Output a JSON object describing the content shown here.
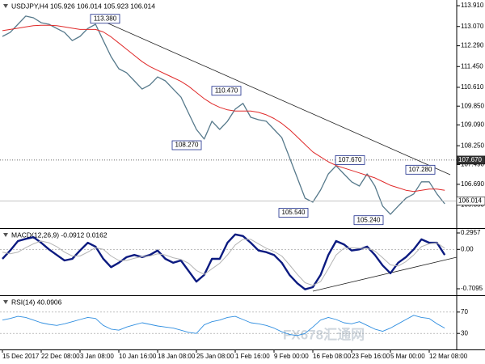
{
  "chart_data": [
    {
      "type": "line",
      "title": "USDJPY,H4  105.926 106.014 105.923 106.014",
      "ylim": [
        104.92,
        114.14
      ],
      "yticks": [
        {
          "value": 113.91,
          "label": "113.910"
        },
        {
          "value": 113.07,
          "label": "113.070"
        },
        {
          "value": 112.29,
          "label": "112.290"
        },
        {
          "value": 111.45,
          "label": "111.450"
        },
        {
          "value": 110.61,
          "label": "110.610"
        },
        {
          "value": 109.85,
          "label": "109.850"
        },
        {
          "value": 109.09,
          "label": "109.090"
        },
        {
          "value": 108.25,
          "label": "108.250"
        },
        {
          "value": 107.49,
          "label": "107.490"
        },
        {
          "value": 106.69,
          "label": "106.690"
        },
        {
          "value": 105.85,
          "label": "105.850"
        }
      ],
      "hlines": [
        {
          "value": 107.67,
          "label": "107.670"
        },
        {
          "value": 106.014,
          "label": "106.014"
        }
      ],
      "annotations": [
        {
          "value": 113.38,
          "label": "113.380"
        },
        {
          "value": 110.47,
          "label": "110.470"
        },
        {
          "value": 108.27,
          "label": "108.270"
        },
        {
          "value": 107.67,
          "label": "107.670"
        },
        {
          "value": 105.54,
          "label": "105.540"
        },
        {
          "value": 105.24,
          "label": "105.240"
        },
        {
          "value": 107.28,
          "label": "107.280"
        }
      ],
      "series": [
        {
          "name": "USDJPY",
          "color": "#56798b",
          "values": [
            112.67,
            112.83,
            113.16,
            113.49,
            113.42,
            113.22,
            113.16,
            112.99,
            112.83,
            112.5,
            112.67,
            112.99,
            113.16,
            112.5,
            111.85,
            111.36,
            111.2,
            110.87,
            110.54,
            110.71,
            111.03,
            110.87,
            110.54,
            110.22,
            109.56,
            108.91,
            108.52,
            109.24,
            108.91,
            109.24,
            109.73,
            109.96,
            109.4,
            109.3,
            109.24,
            108.91,
            108.58,
            107.77,
            106.95,
            106.13,
            105.97,
            106.46,
            107.11,
            107.44,
            107.11,
            106.79,
            106.62,
            107.11,
            106.62,
            105.81,
            105.48,
            105.81,
            106.13,
            106.3,
            106.79,
            106.79,
            106.3,
            105.9
          ]
        },
        {
          "name": "MA",
          "color": "#e02a2a",
          "values": [
            112.9,
            112.95,
            113.0,
            113.05,
            113.1,
            113.12,
            113.12,
            113.1,
            113.05,
            113.0,
            112.95,
            112.95,
            112.95,
            112.85,
            112.65,
            112.4,
            112.15,
            111.9,
            111.65,
            111.45,
            111.3,
            111.15,
            111.0,
            110.85,
            110.65,
            110.4,
            110.15,
            109.95,
            109.8,
            109.7,
            109.65,
            109.65,
            109.65,
            109.6,
            109.5,
            109.35,
            109.15,
            108.9,
            108.6,
            108.3,
            108.0,
            107.8,
            107.6,
            107.45,
            107.35,
            107.25,
            107.15,
            107.05,
            106.95,
            106.8,
            106.65,
            106.55,
            106.45,
            106.4,
            106.45,
            106.5,
            106.5,
            106.45
          ]
        }
      ]
    },
    {
      "type": "line",
      "title": "MACD(12,26,9) -0.0912 0.0162",
      "ylim": [
        -0.826,
        0.3686
      ],
      "yticks": [
        0.2957,
        {
          "value": 0,
          "label": "0.00"
        },
        -0.7095
      ],
      "series": [
        {
          "name": "MACD",
          "color": "#0b1a80",
          "values": [
            -0.17,
            -0.02,
            0.15,
            0.19,
            0.22,
            0.12,
            0.0,
            -0.1,
            -0.2,
            -0.17,
            -0.02,
            0.12,
            0.05,
            -0.17,
            -0.32,
            -0.24,
            -0.14,
            -0.1,
            -0.14,
            -0.1,
            -0.02,
            -0.17,
            -0.24,
            -0.2,
            -0.39,
            -0.58,
            -0.46,
            -0.17,
            -0.17,
            0.12,
            0.27,
            0.24,
            0.12,
            -0.02,
            -0.05,
            -0.1,
            -0.24,
            -0.46,
            -0.61,
            -0.72,
            -0.68,
            -0.46,
            -0.1,
            0.15,
            0.09,
            -0.02,
            0.0,
            0.05,
            -0.1,
            -0.29,
            -0.43,
            -0.24,
            -0.14,
            0.0,
            0.18,
            0.12,
            0.12,
            -0.1
          ]
        },
        {
          "name": "Signal",
          "color": "#b4b4b4",
          "values": [
            -0.05,
            -0.08,
            -0.05,
            0.03,
            0.1,
            0.15,
            0.12,
            0.05,
            -0.05,
            -0.12,
            -0.12,
            -0.05,
            0.03,
            0.0,
            -0.12,
            -0.2,
            -0.2,
            -0.16,
            -0.13,
            -0.12,
            -0.08,
            -0.1,
            -0.15,
            -0.18,
            -0.25,
            -0.38,
            -0.45,
            -0.35,
            -0.25,
            -0.1,
            0.08,
            0.18,
            0.18,
            0.1,
            0.02,
            -0.04,
            -0.12,
            -0.28,
            -0.45,
            -0.6,
            -0.65,
            -0.58,
            -0.35,
            -0.1,
            0.02,
            0.03,
            0.02,
            0.02,
            -0.03,
            -0.15,
            -0.28,
            -0.3,
            -0.22,
            -0.1,
            0.05,
            0.1,
            0.12,
            0.02
          ]
        }
      ]
    },
    {
      "type": "line",
      "title": "RSI(14) 40.0906",
      "ylim": [
        0,
        100
      ],
      "yticks": [
        70,
        30
      ],
      "grid": true,
      "categories": [
        "15 Dec 2017",
        null,
        null,
        null,
        null,
        "22 Dec 08:00",
        null,
        null,
        null,
        null,
        "3 Jan 08:00",
        null,
        null,
        null,
        null,
        "10 Jan 16:00",
        null,
        null,
        null,
        null,
        "18 Jan 08:00",
        null,
        null,
        null,
        null,
        "25 Jan 08:00",
        null,
        null,
        null,
        null,
        "1 Feb 16:00",
        null,
        null,
        null,
        null,
        "9 Feb 00:00",
        null,
        null,
        null,
        null,
        "16 Feb 08:00",
        null,
        null,
        null,
        null,
        "23 Feb 16:00",
        null,
        null,
        null,
        null,
        "5 Mar 00:00",
        null,
        null,
        null,
        null,
        "12 Mar 08:00",
        null,
        null
      ],
      "series": [
        {
          "name": "RSI",
          "color": "#2f8ee0",
          "values": [
            55,
            58,
            62,
            60,
            55,
            50,
            47,
            45,
            48,
            52,
            56,
            60,
            58,
            45,
            38,
            36,
            42,
            46,
            50,
            47,
            44,
            42,
            40,
            36,
            32,
            30,
            46,
            52,
            55,
            60,
            62,
            56,
            50,
            48,
            45,
            40,
            33,
            28,
            26,
            30,
            42,
            55,
            60,
            56,
            50,
            48,
            52,
            45,
            38,
            34,
            40,
            48,
            56,
            64,
            60,
            58,
            48,
            40
          ]
        }
      ]
    }
  ],
  "watermark": "FX678汇通网"
}
